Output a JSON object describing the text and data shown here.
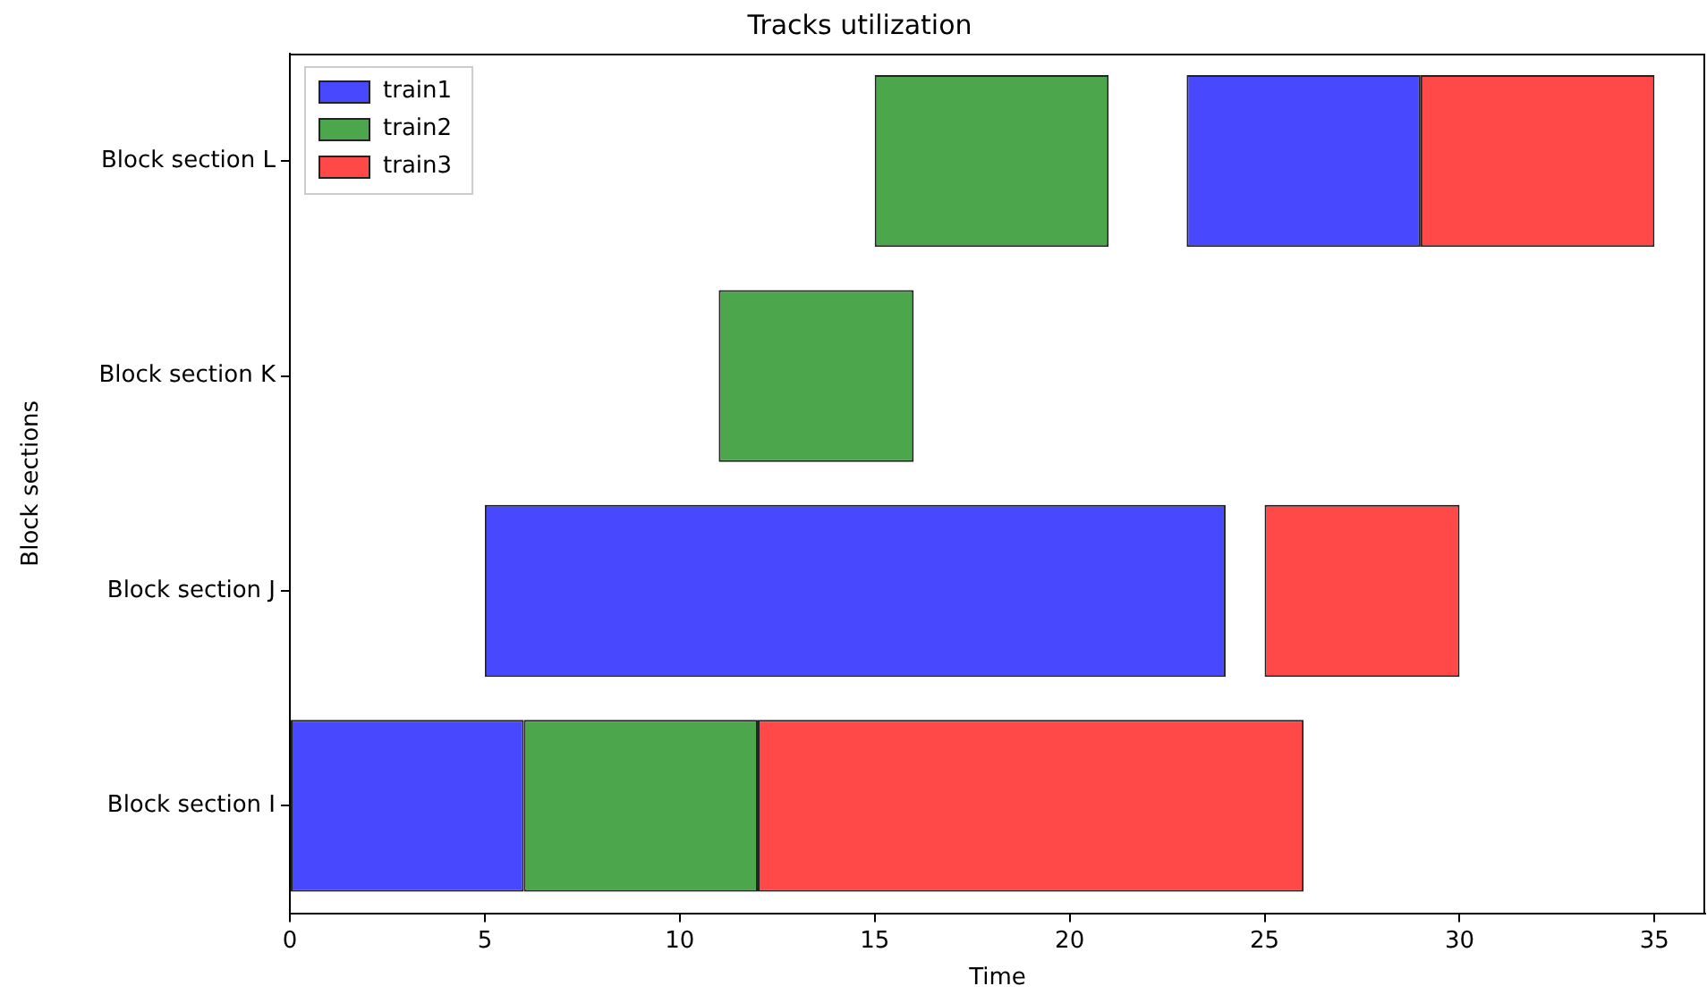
{
  "chart_data": {
    "type": "bar",
    "orientation": "horizontal",
    "title": "Tracks utilization",
    "xlabel": "Time",
    "ylabel": "Block sections",
    "categories": [
      "Block section L",
      "Block section K",
      "Block section J",
      "Block section I"
    ],
    "series": [
      {
        "name": "train1",
        "color": "#4848ff",
        "base": [
          23,
          null,
          5,
          0
        ],
        "values": [
          6,
          null,
          19,
          6
        ]
      },
      {
        "name": "train2",
        "color": "#4ca64c",
        "base": [
          15,
          11,
          null,
          6
        ],
        "values": [
          6,
          5,
          null,
          6
        ]
      },
      {
        "name": "train3",
        "color": "#ff4848",
        "base": [
          29,
          null,
          25,
          12
        ],
        "values": [
          6,
          null,
          5,
          14
        ]
      }
    ],
    "xlim": [
      0,
      36.3
    ],
    "xticks": [
      0,
      5,
      10,
      15,
      20,
      25,
      30,
      35
    ],
    "grid": false,
    "legend": "top left"
  }
}
